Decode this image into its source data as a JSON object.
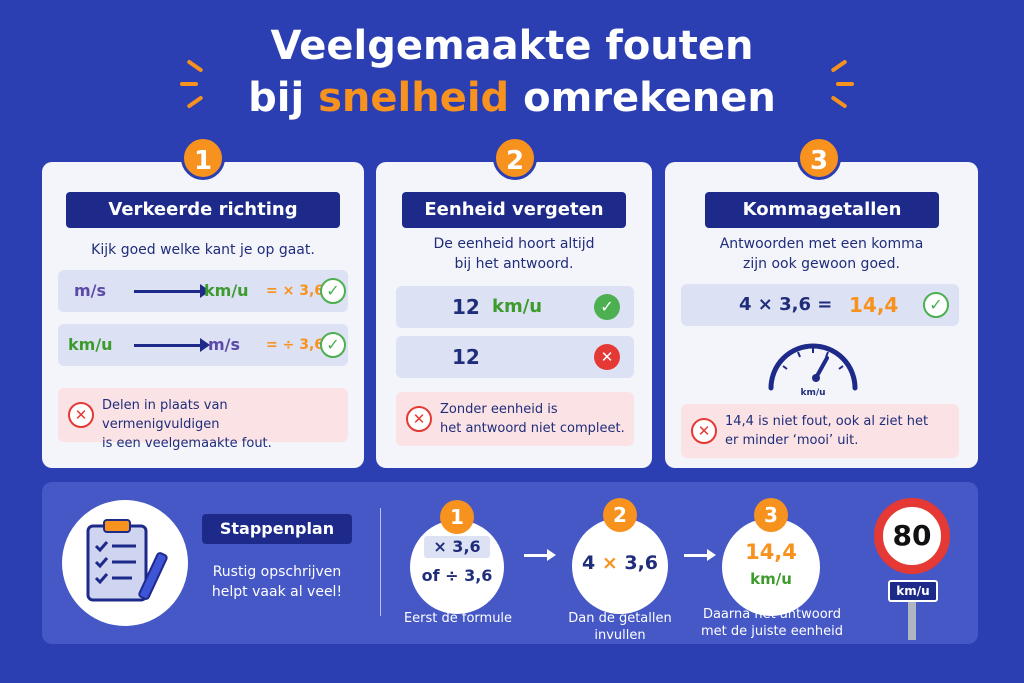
{
  "title": {
    "line1": "Veelgemaakte fouten",
    "line2_pre": "bij ",
    "line2_highlight": "snelheid",
    "line2_post": " omrekenen"
  },
  "colors": {
    "background": "#2b3fb3",
    "accent": "#f7921e",
    "navy": "#1e2a8a",
    "green": "#4caf50",
    "red": "#e53935"
  },
  "cards": [
    {
      "number": "1",
      "title": "Verkeerde richting",
      "desc": "Kijk goed welke kant je op gaat.",
      "rows": [
        {
          "from": "m/s",
          "to": "km/u",
          "op": "= × 3,6"
        },
        {
          "from": "km/u",
          "to": "m/s",
          "op": "= ÷ 3,6"
        }
      ],
      "error_line1": "Delen in plaats van vermenigvuldigen",
      "error_line2": "is een veelgemaakte fout."
    },
    {
      "number": "2",
      "title": "Eenheid vergeten",
      "desc_line1": "De eenheid hoort altijd",
      "desc_line2": "bij het antwoord.",
      "row1_value": "12",
      "row1_unit": "km/u",
      "row2_value": "12",
      "error_line1": "Zonder eenheid is",
      "error_line2": "het antwoord niet compleet."
    },
    {
      "number": "3",
      "title": "Kommagetallen",
      "desc_line1": "Antwoorden met een komma",
      "desc_line2": "zijn ook gewoon goed.",
      "calc": "4 × 3,6 =",
      "result": "14,4",
      "gauge_label": "km/u",
      "error_line1": "14,4 is niet fout, ook al ziet het",
      "error_line2": "er minder ‘mooi’ uit."
    }
  ],
  "plan": {
    "title": "Stappenplan",
    "line1": "Rustig opschrijven",
    "line2": "helpt vaak al veel!",
    "steps": [
      {
        "number": "1",
        "top": "× 3,6",
        "bottom": "of ÷ 3,6",
        "caption": "Eerst de formule"
      },
      {
        "number": "2",
        "a": "4",
        "op": "×",
        "b": "3,6",
        "caption_line1": "Dan de getallen",
        "caption_line2": "invullen"
      },
      {
        "number": "3",
        "value": "14,4",
        "unit": "km/u",
        "caption_line1": "Daarna het antwoord",
        "caption_line2": "met de juiste eenheid"
      }
    ],
    "sign_value": "80",
    "sign_unit": "km/u"
  }
}
